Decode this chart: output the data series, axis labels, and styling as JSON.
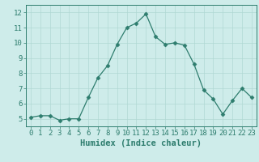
{
  "x": [
    0,
    1,
    2,
    3,
    4,
    5,
    6,
    7,
    8,
    9,
    10,
    11,
    12,
    13,
    14,
    15,
    16,
    17,
    18,
    19,
    20,
    21,
    22,
    23
  ],
  "y": [
    5.1,
    5.2,
    5.2,
    4.9,
    5.0,
    5.0,
    6.4,
    7.7,
    8.5,
    9.9,
    11.0,
    11.3,
    11.9,
    10.4,
    9.9,
    10.0,
    9.85,
    8.6,
    6.9,
    6.3,
    5.3,
    6.2,
    7.0,
    6.4
  ],
  "line_color": "#2e7d6e",
  "marker": "D",
  "marker_size": 2.5,
  "bg_color": "#ceecea",
  "grid_color": "#b0d8d4",
  "xlabel": "Humidex (Indice chaleur)",
  "xlim": [
    -0.5,
    23.5
  ],
  "ylim": [
    4.5,
    12.5
  ],
  "yticks": [
    5,
    6,
    7,
    8,
    9,
    10,
    11,
    12
  ],
  "xticks": [
    0,
    1,
    2,
    3,
    4,
    5,
    6,
    7,
    8,
    9,
    10,
    11,
    12,
    13,
    14,
    15,
    16,
    17,
    18,
    19,
    20,
    21,
    22,
    23
  ],
  "tick_color": "#2e7d6e",
  "label_color": "#2e7d6e",
  "font_size": 6.5,
  "label_font_size": 7.5
}
